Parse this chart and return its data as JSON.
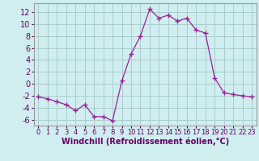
{
  "x": [
    0,
    1,
    2,
    3,
    4,
    5,
    6,
    7,
    8,
    9,
    10,
    11,
    12,
    13,
    14,
    15,
    16,
    17,
    18,
    19,
    20,
    21,
    22,
    23
  ],
  "y": [
    -2.2,
    -2.5,
    -3.0,
    -3.5,
    -4.5,
    -3.5,
    -5.5,
    -5.5,
    -6.2,
    0.5,
    5.0,
    8.0,
    12.5,
    11.0,
    11.5,
    10.5,
    11.0,
    9.0,
    8.5,
    1.0,
    -1.5,
    -1.8,
    -2.0,
    -2.2
  ],
  "line_color": "#992299",
  "marker": "+",
  "marker_size": 4,
  "bg_color": "#d0eef0",
  "grid_color": "#aacccc",
  "xlabel": "Windchill (Refroidissement éolien,°C)",
  "xlabel_fontsize": 7,
  "tick_fontsize": 7,
  "ylim": [
    -7,
    13.5
  ],
  "yticks": [
    -6,
    -4,
    -2,
    0,
    2,
    4,
    6,
    8,
    10,
    12
  ],
  "xlim": [
    -0.5,
    23.5
  ],
  "xticks": [
    0,
    1,
    2,
    3,
    4,
    5,
    6,
    7,
    8,
    9,
    10,
    11,
    12,
    13,
    14,
    15,
    16,
    17,
    18,
    19,
    20,
    21,
    22,
    23
  ],
  "spine_color": "#999999",
  "label_color": "#660066"
}
